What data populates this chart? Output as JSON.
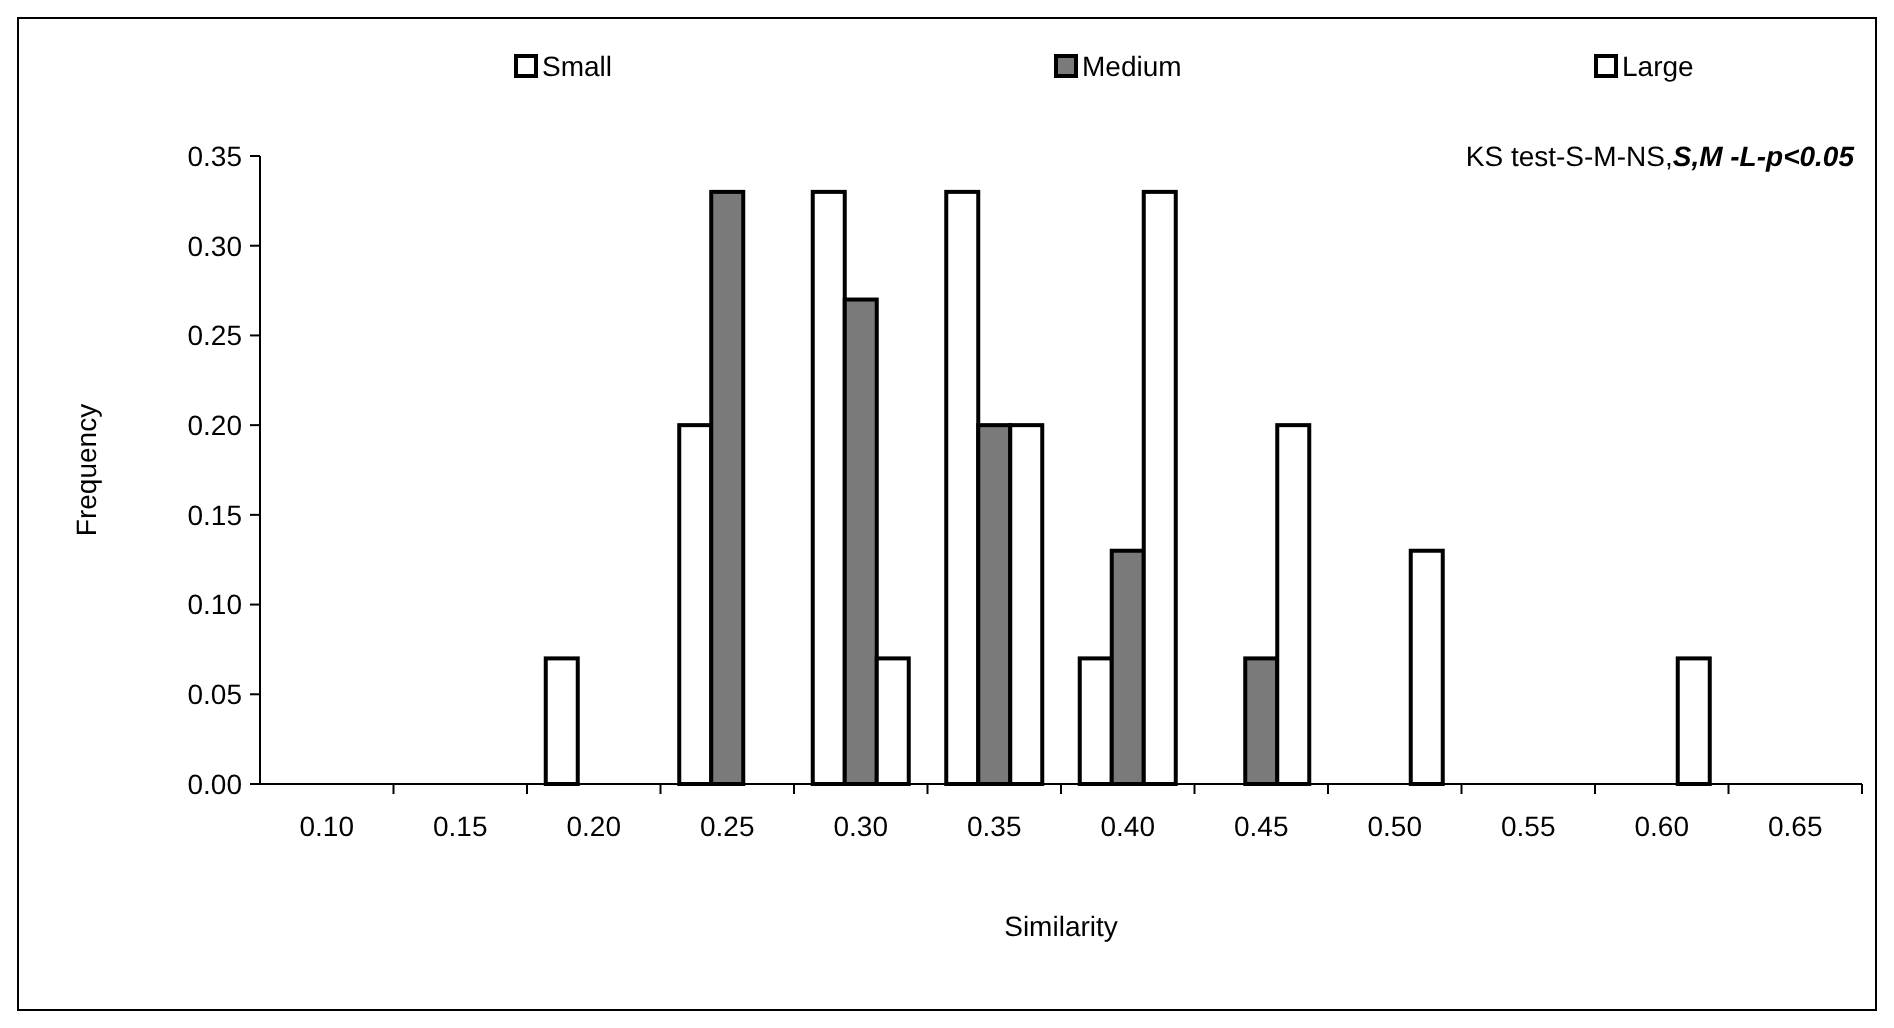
{
  "chart_data": {
    "type": "bar",
    "xlabel": "Similarity",
    "ylabel": "Frequency",
    "categories": [
      "0.10",
      "0.15",
      "0.20",
      "0.25",
      "0.30",
      "0.35",
      "0.40",
      "0.45",
      "0.50",
      "0.55",
      "0.60",
      "0.65"
    ],
    "series": [
      {
        "name": "Small",
        "color": "#ffffff",
        "values": [
          0,
          0,
          0.07,
          0.2,
          0.33,
          0.33,
          0.07,
          0,
          0,
          0,
          0,
          0
        ]
      },
      {
        "name": "Medium",
        "color": "#7a7a7a",
        "values": [
          0,
          0,
          0,
          0.33,
          0.27,
          0.2,
          0.13,
          0.07,
          0,
          0,
          0,
          0
        ]
      },
      {
        "name": "Large",
        "color": "#ffffff",
        "values": [
          0,
          0,
          0,
          0,
          0.07,
          0.2,
          0.33,
          0.2,
          0.13,
          0,
          0.07,
          0
        ]
      }
    ],
    "ylim": [
      0,
      0.35
    ],
    "yticks": [
      {
        "value": 0,
        "label": "0.00"
      },
      {
        "value": 0.05,
        "label": "0.05"
      },
      {
        "value": 0.1,
        "label": "0.10"
      },
      {
        "value": 0.15,
        "label": "0.15"
      },
      {
        "value": 0.2,
        "label": "0.20"
      },
      {
        "value": 0.25,
        "label": "0.25"
      },
      {
        "value": 0.3,
        "label": "0.30"
      },
      {
        "value": 0.35,
        "label": "0.35"
      }
    ],
    "grid": false,
    "legend": "top",
    "annotations": [
      "KS test-S-M-NS,",
      "S,M -L-p<0.05"
    ]
  }
}
